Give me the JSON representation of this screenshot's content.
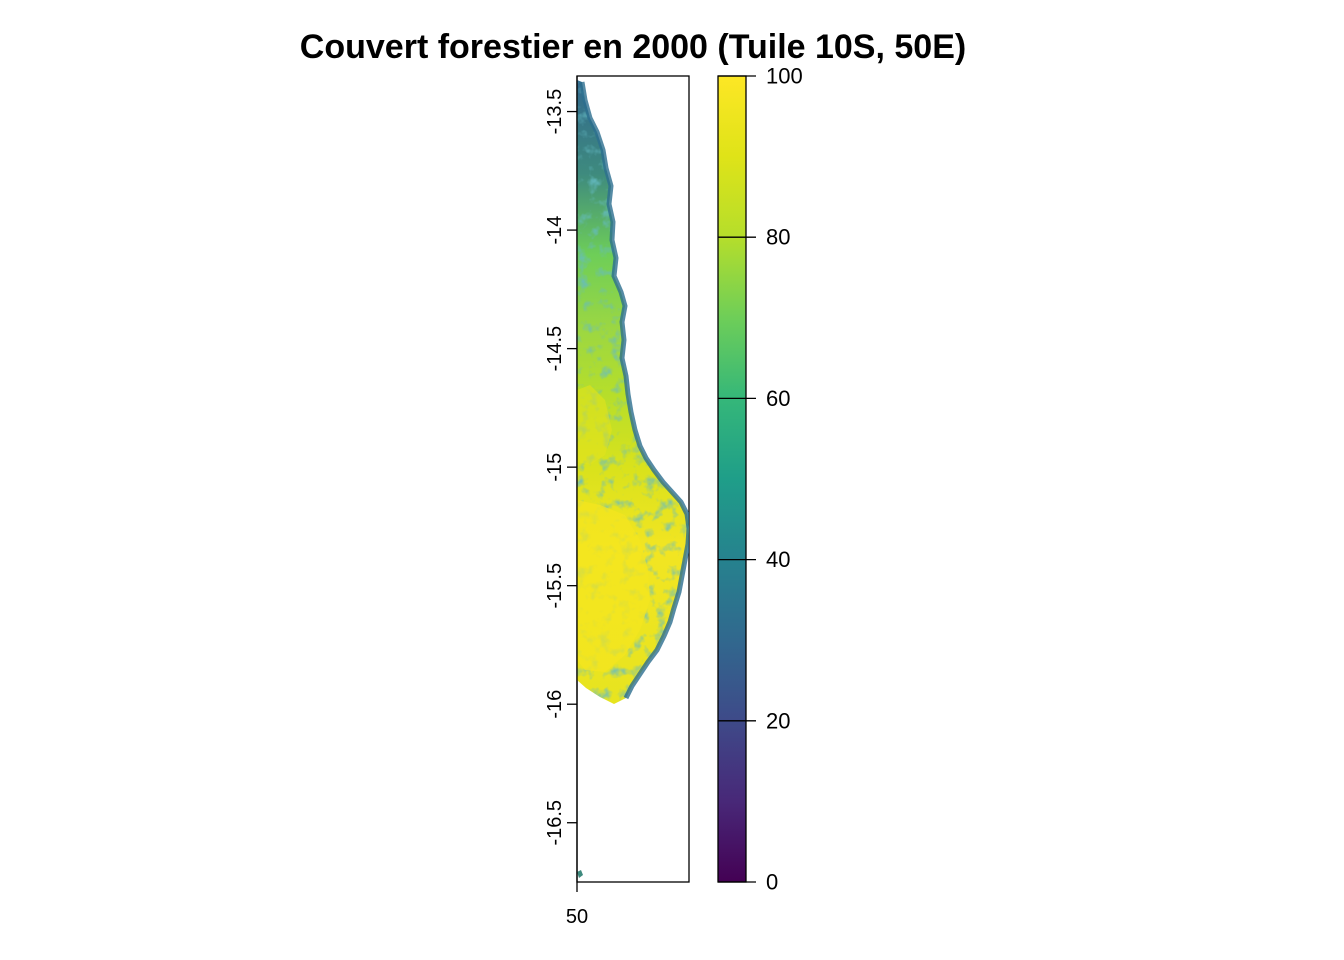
{
  "chart_data": {
    "type": "heatmap",
    "title": "Couvert forestier en 2000 (Tuile 10S, 50E)",
    "x_axis": {
      "range": [
        50.0,
        50.25
      ],
      "ticks": [
        50
      ],
      "tick_labels": [
        "50"
      ]
    },
    "y_axis": {
      "range": [
        -16.75,
        -13.35
      ],
      "ticks": [
        -13.5,
        -14,
        -14.5,
        -15,
        -15.5,
        -16,
        -16.5
      ],
      "tick_labels": [
        "-13.5",
        "-14",
        "-14.5",
        "-15",
        "-15.5",
        "-16",
        "-16.5"
      ]
    },
    "legend": {
      "palette": "viridis",
      "range": [
        0,
        100
      ],
      "ticks": [
        0,
        20,
        40,
        60,
        80,
        100
      ],
      "tick_labels": [
        "0",
        "20",
        "40",
        "60",
        "80",
        "100"
      ],
      "colors": [
        "#440154",
        "#3b528b",
        "#21908c",
        "#5dc963",
        "#a0da39",
        "#fde725"
      ],
      "placement": "right"
    },
    "map_regions": {
      "north_coastal_band": "mixed 20-60% cover",
      "central_plateau": "mostly 80-100% cover",
      "south_lowlands": "mostly 90-100% cover",
      "east_coast_edge": "lower cover 20-50%"
    }
  }
}
